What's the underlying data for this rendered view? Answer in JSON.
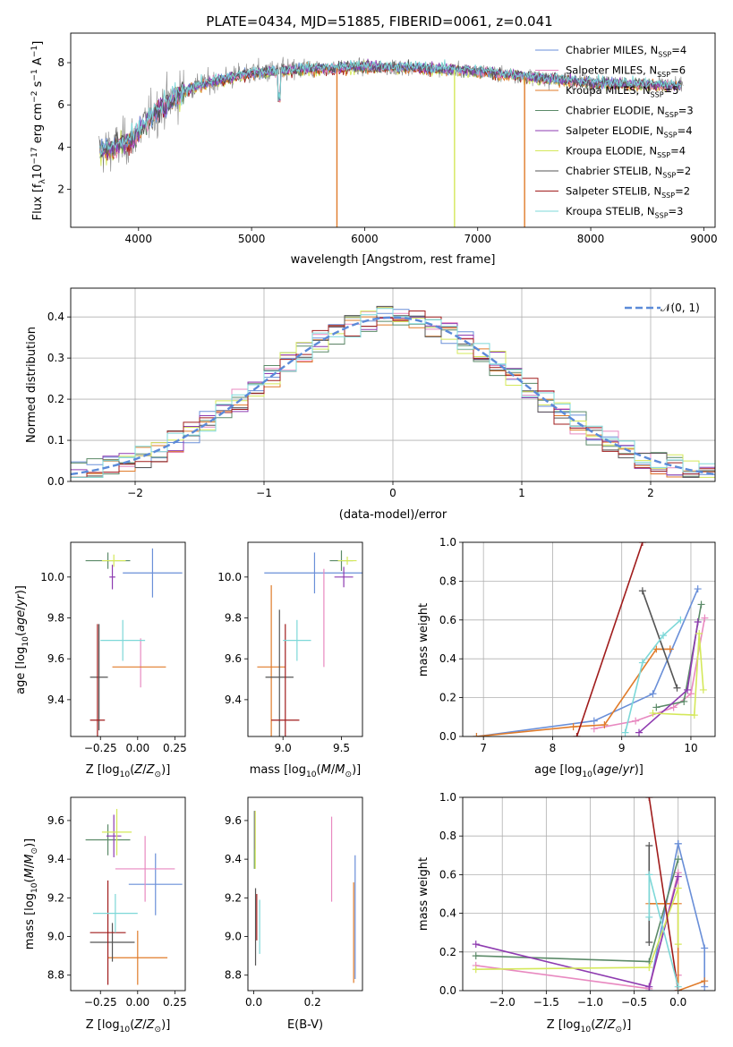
{
  "figure_title": "PLATE=0434, MJD=51885, FIBERID=0061, z=0.041",
  "colors": {
    "chabrier_miles": "#6a8fd8",
    "salpeter_miles": "#e889c0",
    "kroupa_miles": "#e07b2a",
    "chabrier_elodie": "#5b8a68",
    "salpeter_elodie": "#8e3bb0",
    "kroupa_elodie": "#d4e85a",
    "chabrier_stelib": "#555555",
    "salpeter_stelib": "#a01c1c",
    "kroupa_stelib": "#7dd8d8"
  },
  "legend": {
    "entries": [
      {
        "base": "Chabrier MILES, N",
        "sub": "SSP",
        "tail": "=4"
      },
      {
        "base": "Salpeter MILES, N",
        "sub": "SSP",
        "tail": "=6"
      },
      {
        "base": "Kroupa MILES, N",
        "sub": "SSP",
        "tail": "=5"
      },
      {
        "base": "Chabrier ELODIE, N",
        "sub": "SSP",
        "tail": "=3"
      },
      {
        "base": "Salpeter ELODIE, N",
        "sub": "SSP",
        "tail": "=4"
      },
      {
        "base": "Kroupa ELODIE, N",
        "sub": "SSP",
        "tail": "=4"
      },
      {
        "base": "Chabrier STELIB, N",
        "sub": "SSP",
        "tail": "=2"
      },
      {
        "base": "Salpeter STELIB, N",
        "sub": "SSP",
        "tail": "=2"
      },
      {
        "base": "Kroupa STELIB, N",
        "sub": "SSP",
        "tail": "=3"
      }
    ],
    "normal_label": "𝒩(0, 1)"
  },
  "chart_data": [
    {
      "id": "spectrum",
      "type": "line",
      "xlabel": "wavelength [Angstrom, rest frame]",
      "ylabel": "Flux [f_λ 10^-17 erg cm^-2 s^-1 A^-1]",
      "xlim": [
        3400,
        9100
      ],
      "ylim": [
        0.2,
        9.4
      ],
      "xticks": [
        4000,
        5000,
        6000,
        7000,
        8000,
        9000
      ],
      "yticks": [
        2,
        4,
        6,
        8
      ],
      "legend_position": "top-right",
      "grid": false,
      "series_continuum": {
        "x": [
          3650,
          3800,
          3950,
          4100,
          4300,
          4500,
          5000,
          5500,
          6000,
          6500,
          7000,
          7500,
          8000,
          8500,
          8800
        ],
        "y": [
          3.8,
          4.0,
          4.4,
          5.4,
          6.3,
          6.9,
          7.5,
          7.7,
          7.8,
          7.75,
          7.6,
          7.3,
          7.05,
          6.95,
          6.9
        ]
      },
      "dips": [
        {
          "x": 5755,
          "y": 0.2
        },
        {
          "x": 6795,
          "y": 0.2
        },
        {
          "x": 7415,
          "y": 0.2
        }
      ]
    },
    {
      "id": "residuals",
      "type": "histogram",
      "xlabel": "(data-model)/error",
      "ylabel": "Normed distribution",
      "xlim": [
        -2.5,
        2.5
      ],
      "ylim": [
        0,
        0.47
      ],
      "xticks": [
        -2,
        -1,
        0,
        1,
        2
      ],
      "yticks": [
        0.0,
        0.1,
        0.2,
        0.3,
        0.4
      ],
      "grid": true,
      "bins": 40,
      "gaussian": {
        "mean": 0,
        "sigma": 1
      }
    },
    {
      "id": "age_vs_Z",
      "type": "errorbar",
      "xlabel": "Z [log10(Z/Z☉)]",
      "ylabel": "age [log10(age/yr)]",
      "xlim": [
        -0.45,
        0.32
      ],
      "ylim": [
        9.22,
        10.17
      ],
      "xticks": [
        -0.25,
        0.0,
        0.25
      ],
      "yticks": [
        9.4,
        9.6,
        9.8,
        10.0
      ],
      "points": [
        {
          "s": "chabrier_miles",
          "x": 0.1,
          "y": 10.02,
          "xe": 0.2,
          "ye": 0.12
        },
        {
          "s": "salpeter_miles",
          "x": 0.02,
          "y": 9.58,
          "xe": 0.0,
          "ye": 0.12
        },
        {
          "s": "kroupa_miles",
          "x": 0.01,
          "y": 9.56,
          "xe": 0.18,
          "ye": 0.0
        },
        {
          "s": "chabrier_elodie",
          "x": -0.2,
          "y": 10.08,
          "xe": 0.15,
          "ye": 0.04
        },
        {
          "s": "salpeter_elodie",
          "x": -0.17,
          "y": 10.0,
          "xe": 0.02,
          "ye": 0.06
        },
        {
          "s": "kroupa_elodie",
          "x": -0.16,
          "y": 10.08,
          "xe": 0.08,
          "ye": 0.03
        },
        {
          "s": "chabrier_stelib",
          "x": -0.26,
          "y": 9.51,
          "xe": 0.06,
          "ye": 0.26
        },
        {
          "s": "salpeter_stelib",
          "x": -0.27,
          "y": 9.3,
          "xe": 0.05,
          "ye": 0.47
        },
        {
          "s": "kroupa_stelib",
          "x": -0.1,
          "y": 9.69,
          "xe": 0.15,
          "ye": 0.1
        }
      ]
    },
    {
      "id": "age_vs_mass",
      "type": "errorbar",
      "xlabel": "mass [log10(M/M☉)]",
      "ylabel": "",
      "xlim": [
        8.7,
        9.68
      ],
      "ylim": [
        9.22,
        10.17
      ],
      "xticks": [
        9.0,
        9.5
      ],
      "yticks": [
        9.4,
        9.6,
        9.8,
        10.0
      ],
      "points": [
        {
          "s": "chabrier_miles",
          "x": 9.27,
          "y": 10.02,
          "xe": 0.43,
          "ye": 0.1
        },
        {
          "s": "salpeter_miles",
          "x": 9.35,
          "y": 9.8,
          "xe": 0.0,
          "ye": 0.24
        },
        {
          "s": "kroupa_miles",
          "x": 8.9,
          "y": 9.56,
          "xe": 0.12,
          "ye": 0.4
        },
        {
          "s": "chabrier_elodie",
          "x": 9.5,
          "y": 10.08,
          "xe": 0.1,
          "ye": 0.05
        },
        {
          "s": "salpeter_elodie",
          "x": 9.52,
          "y": 10.0,
          "xe": 0.08,
          "ye": 0.05
        },
        {
          "s": "kroupa_elodie",
          "x": 9.55,
          "y": 10.08,
          "xe": 0.08,
          "ye": 0.02
        },
        {
          "s": "chabrier_stelib",
          "x": 8.97,
          "y": 9.51,
          "xe": 0.12,
          "ye": 0.33
        },
        {
          "s": "salpeter_stelib",
          "x": 9.02,
          "y": 9.3,
          "xe": 0.12,
          "ye": 0.47
        },
        {
          "s": "kroupa_stelib",
          "x": 9.12,
          "y": 9.69,
          "xe": 0.12,
          "ye": 0.1
        }
      ]
    },
    {
      "id": "weight_vs_age",
      "type": "line",
      "xlabel": "age [log10(age/yr)]",
      "ylabel": "mass weight",
      "xlim": [
        6.7,
        10.35
      ],
      "ylim": [
        0,
        1.0
      ],
      "xticks": [
        7,
        8,
        9,
        10
      ],
      "yticks": [
        0.0,
        0.2,
        0.4,
        0.6,
        0.8,
        1.0
      ],
      "grid": true,
      "series": [
        {
          "s": "chabrier_miles",
          "x": [
            6.9,
            8.6,
            9.45,
            10.1
          ],
          "y": [
            0.0,
            0.08,
            0.22,
            0.76
          ]
        },
        {
          "s": "salpeter_miles",
          "x": [
            8.6,
            9.2,
            9.75,
            10.0,
            10.2
          ],
          "y": [
            0.04,
            0.08,
            0.15,
            0.22,
            0.61
          ]
        },
        {
          "s": "kroupa_miles",
          "x": [
            6.9,
            8.3,
            8.75,
            9.5,
            9.7
          ],
          "y": [
            0.0,
            0.05,
            0.06,
            0.45,
            0.45
          ]
        },
        {
          "s": "chabrier_elodie",
          "x": [
            9.5,
            9.9,
            10.15
          ],
          "y": [
            0.15,
            0.18,
            0.68
          ]
        },
        {
          "s": "salpeter_elodie",
          "x": [
            9.25,
            9.95,
            10.1
          ],
          "y": [
            0.02,
            0.24,
            0.59
          ]
        },
        {
          "s": "kroupa_elodie",
          "x": [
            9.45,
            10.05,
            10.12,
            10.18
          ],
          "y": [
            0.12,
            0.11,
            0.53,
            0.24
          ]
        },
        {
          "s": "chabrier_stelib",
          "x": [
            9.3,
            9.8
          ],
          "y": [
            0.75,
            0.25
          ]
        },
        {
          "s": "salpeter_stelib",
          "x": [
            8.35,
            9.3
          ],
          "y": [
            0.0,
            1.0
          ]
        },
        {
          "s": "kroupa_stelib",
          "x": [
            9.05,
            9.3,
            9.6,
            9.85
          ],
          "y": [
            0.02,
            0.38,
            0.52,
            0.6
          ]
        }
      ]
    },
    {
      "id": "mass_vs_Z",
      "type": "errorbar",
      "xlabel": "Z [log10(Z/Z☉)]",
      "ylabel": "mass [log10(M/M☉)]",
      "xlim": [
        -0.45,
        0.32
      ],
      "ylim": [
        8.72,
        9.72
      ],
      "xticks": [
        -0.25,
        0.0,
        0.25
      ],
      "yticks": [
        8.8,
        9.0,
        9.2,
        9.4,
        9.6
      ],
      "points": [
        {
          "s": "chabrier_miles",
          "x": 0.12,
          "y": 9.27,
          "xe": 0.18,
          "ye": 0.16
        },
        {
          "s": "salpeter_miles",
          "x": 0.05,
          "y": 9.35,
          "xe": 0.2,
          "ye": 0.17
        },
        {
          "s": "kroupa_miles",
          "x": 0.0,
          "y": 8.89,
          "xe": 0.2,
          "ye": 0.14
        },
        {
          "s": "chabrier_elodie",
          "x": -0.2,
          "y": 9.5,
          "xe": 0.15,
          "ye": 0.08
        },
        {
          "s": "salpeter_elodie",
          "x": -0.16,
          "y": 9.52,
          "xe": 0.05,
          "ye": 0.11
        },
        {
          "s": "kroupa_elodie",
          "x": -0.14,
          "y": 9.54,
          "xe": 0.1,
          "ye": 0.12
        },
        {
          "s": "chabrier_stelib",
          "x": -0.17,
          "y": 8.97,
          "xe": 0.15,
          "ye": 0.1
        },
        {
          "s": "salpeter_stelib",
          "x": -0.2,
          "y": 9.02,
          "xe": 0.12,
          "ye": 0.27
        },
        {
          "s": "kroupa_stelib",
          "x": -0.15,
          "y": 9.12,
          "xe": 0.15,
          "ye": 0.1
        }
      ]
    },
    {
      "id": "mass_vs_EBV",
      "type": "errorbar",
      "xlabel": "E(B-V)",
      "ylabel": "",
      "xlim": [
        -0.02,
        0.37
      ],
      "ylim": [
        8.72,
        9.72
      ],
      "xticks": [
        0.0,
        0.2
      ],
      "yticks": [
        8.8,
        9.0,
        9.2,
        9.4,
        9.6
      ],
      "points": [
        {
          "s": "chabrier_miles",
          "x": 0.345,
          "y": 9.1,
          "xe": 0.0,
          "ye": 0.32
        },
        {
          "s": "salpeter_miles",
          "x": 0.265,
          "y": 9.4,
          "xe": 0.0,
          "ye": 0.22
        },
        {
          "s": "kroupa_miles",
          "x": 0.34,
          "y": 9.02,
          "xe": 0.0,
          "ye": 0.26
        },
        {
          "s": "chabrier_elodie",
          "x": 0.002,
          "y": 9.5,
          "xe": 0.0,
          "ye": 0.15
        },
        {
          "s": "salpeter_elodie",
          "x": 0.004,
          "y": 9.55,
          "xe": 0.0,
          "ye": 0.1
        },
        {
          "s": "kroupa_elodie",
          "x": 0.005,
          "y": 9.5,
          "xe": 0.0,
          "ye": 0.15
        },
        {
          "s": "chabrier_stelib",
          "x": 0.006,
          "y": 9.05,
          "xe": 0.0,
          "ye": 0.2
        },
        {
          "s": "salpeter_stelib",
          "x": 0.01,
          "y": 9.1,
          "xe": 0.0,
          "ye": 0.12
        },
        {
          "s": "kroupa_stelib",
          "x": 0.02,
          "y": 9.05,
          "xe": 0.0,
          "ye": 0.14
        }
      ]
    },
    {
      "id": "weight_vs_Z",
      "type": "line",
      "xlabel": "Z [log10(Z/Z☉)]",
      "ylabel": "mass weight",
      "xlim": [
        -2.45,
        0.42
      ],
      "ylim": [
        0,
        1.0
      ],
      "xticks": [
        -2.0,
        -1.5,
        -1.0,
        -0.5,
        0.0
      ],
      "yticks": [
        0.0,
        0.2,
        0.4,
        0.6,
        0.8,
        1.0
      ],
      "grid": true,
      "series": [
        {
          "s": "chabrier_miles",
          "x": [
            -0.33,
            0.0,
            0.0,
            0.3,
            0.3
          ],
          "y": [
            0.0,
            0.76,
            0.76,
            0.22,
            0.02
          ]
        },
        {
          "s": "salpeter_miles",
          "x": [
            -2.3,
            -0.33,
            0.0,
            0.0
          ],
          "y": [
            0.13,
            0.01,
            0.61,
            0.08
          ]
        },
        {
          "s": "kroupa_miles",
          "x": [
            -0.33,
            0.0,
            0.0,
            0.3
          ],
          "y": [
            0.45,
            0.45,
            0.0,
            0.05
          ]
        },
        {
          "s": "chabrier_elodie",
          "x": [
            -2.3,
            -0.33,
            0.0
          ],
          "y": [
            0.18,
            0.15,
            0.68
          ]
        },
        {
          "s": "salpeter_elodie",
          "x": [
            -2.3,
            -0.33,
            0.0
          ],
          "y": [
            0.24,
            0.02,
            0.59
          ]
        },
        {
          "s": "kroupa_elodie",
          "x": [
            -2.3,
            -0.33,
            0.0,
            0.0
          ],
          "y": [
            0.11,
            0.12,
            0.53,
            0.24
          ]
        },
        {
          "s": "chabrier_stelib",
          "x": [
            -0.33,
            -0.33
          ],
          "y": [
            0.75,
            0.25
          ]
        },
        {
          "s": "salpeter_stelib",
          "x": [
            -0.33,
            0.0
          ],
          "y": [
            1.0,
            0.0
          ]
        },
        {
          "s": "kroupa_stelib",
          "x": [
            -0.33,
            -0.33,
            0.0
          ],
          "y": [
            0.38,
            0.6,
            0.02
          ]
        }
      ]
    }
  ]
}
